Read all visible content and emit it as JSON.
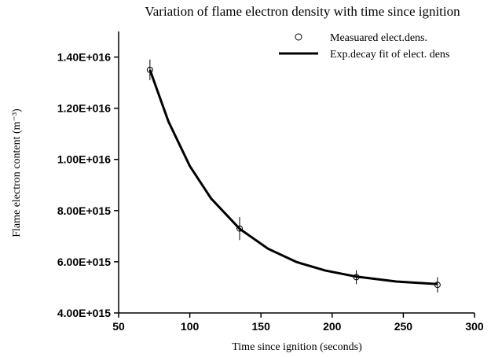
{
  "chart_data": {
    "type": "scatter",
    "title": "Variation of flame electron density with time since ignition",
    "xlabel": "Time since ignition (seconds)",
    "ylabel": "Flame electron content (m⁻³)",
    "xlim": [
      50,
      300
    ],
    "xticks": [
      50,
      100,
      150,
      200,
      250,
      300
    ],
    "ylim": [
      4000000000000000.0,
      1.5e+16
    ],
    "yticks": [
      {
        "value": 4000000000000000.0,
        "label": "4.00E+015"
      },
      {
        "value": 6000000000000000.0,
        "label": "6.00E+015"
      },
      {
        "value": 8000000000000000.0,
        "label": "8.00E+015"
      },
      {
        "value": 1e+16,
        "label": "1.00E+016"
      },
      {
        "value": 1.2e+16,
        "label": "1.20E+016"
      },
      {
        "value": 1.4e+16,
        "label": "1.40E+016"
      }
    ],
    "legend": "upper right",
    "series": [
      {
        "name": "Measuared elect.dens.",
        "color": "#000000",
        "marker": "circle",
        "x": [
          72,
          135,
          217,
          274
        ],
        "values": [
          1.35e+16,
          7300000000000000.0,
          5400000000000000.0,
          5100000000000000.0
        ],
        "errors": [
          400000000000000.0,
          450000000000000.0,
          270000000000000.0,
          300000000000000.0
        ]
      },
      {
        "name": "Exp.decay fit of elect. dens",
        "color": "#000000",
        "marker": "line",
        "x": [
          72,
          85,
          100,
          115,
          135,
          155,
          175,
          195,
          217,
          245,
          274
        ],
        "values": [
          1.35e+16,
          1.148e+16,
          9740000000000000.0,
          8470000000000000.0,
          7290000000000000.0,
          6510000000000000.0,
          5990000000000000.0,
          5660000000000000.0,
          5420000000000000.0,
          5230000000000000.0,
          5130000000000000.0
        ]
      }
    ]
  }
}
